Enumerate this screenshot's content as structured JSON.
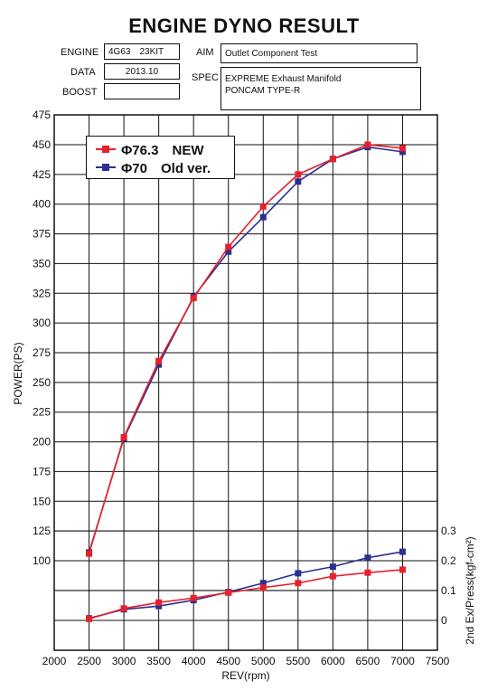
{
  "header": {
    "title": "ENGINE DYNO RESULT",
    "engine_label": "ENGINE",
    "engine_value": "4G63　23KIT",
    "data_label": "DATA",
    "data_value": "2013.10",
    "boost_label": "BOOST",
    "boost_value": "",
    "aim_label": "AIM",
    "aim_value": "Outlet Component Test",
    "spec_label": "SPEC",
    "spec_line1": "EXPREME Exhaust Manifold",
    "spec_line2": "PONCAM TYPE-R"
  },
  "colors": {
    "new": "#e8202a",
    "old": "#2b2f8f",
    "grid": "#111111"
  },
  "chart_data": {
    "type": "line",
    "xlabel": "REV(rpm)",
    "ylabel": "POWER(PS)",
    "y2label": "2nd Ex/Press(kgf-cm²)",
    "xlim": [
      2000,
      7500
    ],
    "ylim": [
      0,
      475
    ],
    "y2lim": [
      0,
      0.3
    ],
    "x_ticks": [
      2000,
      2500,
      3000,
      3500,
      4000,
      4500,
      5000,
      5500,
      6000,
      6500,
      7000,
      7500
    ],
    "y_ticks": [
      100,
      125,
      150,
      175,
      200,
      225,
      250,
      275,
      300,
      325,
      350,
      375,
      400,
      425,
      450,
      475
    ],
    "y2_ticks": [
      "0",
      "0.1",
      "0.2",
      "0.3"
    ],
    "y2_tick_values": [
      0,
      0.1,
      0.2,
      0.3
    ],
    "x": [
      2500,
      3000,
      3500,
      4000,
      4500,
      5000,
      5500,
      6000,
      6500,
      7000
    ],
    "power_series": [
      {
        "name": "Φ76.3　NEW",
        "values": [
          106,
          204,
          268,
          321,
          364,
          398,
          425,
          438,
          450,
          447
        ]
      },
      {
        "name": "Φ70　Old ver.",
        "values": [
          107,
          203,
          265,
          322,
          360,
          389,
          419,
          438,
          448,
          444
        ]
      }
    ],
    "pressure_series": [
      {
        "name": "Φ76.3　NEW",
        "values": [
          0.005,
          0.04,
          0.06,
          0.075,
          0.093,
          0.11,
          0.125,
          0.148,
          0.16,
          0.17
        ]
      },
      {
        "name": "Φ70　Old ver.",
        "values": [
          0.007,
          0.037,
          0.048,
          0.068,
          0.095,
          0.125,
          0.158,
          0.18,
          0.21,
          0.23
        ]
      }
    ],
    "legend_position": "top-left",
    "grid": true
  }
}
